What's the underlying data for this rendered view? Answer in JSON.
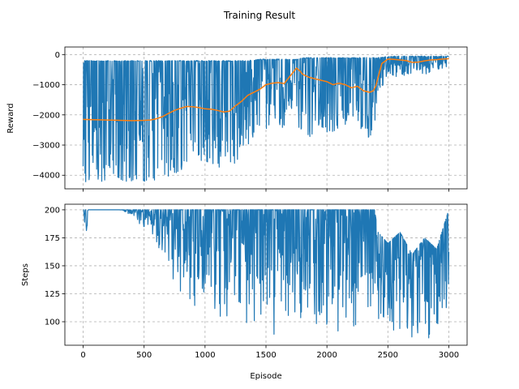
{
  "figure": {
    "title": "Training Result"
  },
  "chart_data": [
    {
      "type": "line",
      "xlabel": "",
      "ylabel": "Reward",
      "xlim": [
        -150,
        3150
      ],
      "ylim": [
        -4450,
        250
      ],
      "xticks": [
        0,
        500,
        1000,
        1500,
        2000,
        2500,
        3000
      ],
      "xtick_labels": [],
      "yticks": [
        0,
        -1000,
        -2000,
        -3000,
        -4000
      ],
      "ytick_labels": [
        "0",
        "−1000",
        "−2000",
        "−3000",
        "−4000"
      ],
      "grid": true,
      "raw_color": "#1f77b4",
      "avg_color": "#ff7f0e",
      "raw_envelope": {
        "x": [
          0,
          50,
          200,
          400,
          550,
          650,
          750,
          850,
          950,
          1050,
          1150,
          1250,
          1350,
          1450,
          1550,
          1650,
          1700,
          1750,
          1800,
          1900,
          2000,
          2100,
          2200,
          2300,
          2380,
          2420,
          2500,
          2600,
          2700,
          2800,
          2900,
          3000
        ],
        "upper": [
          -200,
          -200,
          -200,
          -200,
          -200,
          -200,
          -200,
          -200,
          -200,
          -200,
          -200,
          -200,
          -200,
          -150,
          -150,
          -150,
          -150,
          -150,
          -100,
          -100,
          -100,
          -100,
          -100,
          -100,
          -100,
          -100,
          -50,
          -50,
          -50,
          -50,
          -50,
          -50
        ],
        "lower": [
          -4300,
          -4200,
          -4200,
          -4200,
          -4200,
          -4100,
          -4000,
          -3700,
          -3500,
          -3600,
          -3800,
          -3600,
          -3000,
          -2600,
          -2400,
          -2500,
          -1900,
          -2300,
          -2600,
          -2800,
          -2600,
          -2500,
          -2300,
          -2600,
          -2900,
          -1400,
          -600,
          -800,
          -600,
          -700,
          -500,
          -400
        ]
      },
      "series": [
        {
          "x": [
            0,
            100,
            200,
            300,
            400,
            500,
            550,
            600,
            650,
            700,
            750,
            800,
            850,
            900,
            950,
            1000,
            1050,
            1100,
            1150,
            1200,
            1250,
            1300,
            1350,
            1400,
            1450,
            1500,
            1550,
            1600,
            1650,
            1700,
            1750,
            1780,
            1800,
            1850,
            1900,
            1950,
            2000,
            2050,
            2100,
            2150,
            2200,
            2250,
            2300,
            2350,
            2380,
            2400,
            2420,
            2450,
            2500,
            2550,
            2600,
            2650,
            2700,
            2750,
            2800,
            2850,
            2900,
            2950,
            3000
          ],
          "y": [
            -2150,
            -2160,
            -2170,
            -2180,
            -2190,
            -2180,
            -2170,
            -2130,
            -2060,
            -1950,
            -1850,
            -1780,
            -1720,
            -1730,
            -1760,
            -1800,
            -1810,
            -1850,
            -1900,
            -1880,
            -1700,
            -1550,
            -1350,
            -1250,
            -1150,
            -1000,
            -950,
            -930,
            -960,
            -700,
            -450,
            -550,
            -650,
            -750,
            -800,
            -850,
            -900,
            -1000,
            -950,
            -1000,
            -1100,
            -1050,
            -1200,
            -1250,
            -1200,
            -1050,
            -750,
            -300,
            -150,
            -160,
            -180,
            -200,
            -260,
            -250,
            -210,
            -180,
            -170,
            -150,
            -140
          ]
        }
      ]
    },
    {
      "type": "line",
      "xlabel": "Episode",
      "ylabel": "Steps",
      "xlim": [
        -150,
        3150
      ],
      "ylim": [
        79,
        205
      ],
      "xticks": [
        0,
        500,
        1000,
        1500,
        2000,
        2500,
        3000
      ],
      "xtick_labels": [
        "0",
        "500",
        "1000",
        "1500",
        "2000",
        "2500",
        "3000"
      ],
      "yticks": [
        200,
        175,
        150,
        125,
        100
      ],
      "ytick_labels": [
        "200",
        "175",
        "150",
        "125",
        "100"
      ],
      "grid": true,
      "raw_color": "#1f77b4",
      "raw_envelope": {
        "x": [
          0,
          20,
          40,
          100,
          300,
          400,
          450,
          500,
          600,
          650,
          700,
          750,
          800,
          850,
          950,
          1050,
          1150,
          1250,
          1350,
          1450,
          1550,
          1650,
          1750,
          1850,
          1950,
          2050,
          2150,
          2250,
          2350,
          2390,
          2420,
          2500,
          2600,
          2700,
          2800,
          2900,
          3000
        ],
        "upper": [
          200,
          200,
          200,
          200,
          200,
          200,
          200,
          200,
          200,
          200,
          200,
          200,
          200,
          200,
          200,
          200,
          200,
          200,
          200,
          200,
          200,
          200,
          200,
          200,
          200,
          200,
          200,
          200,
          200,
          200,
          180,
          170,
          180,
          160,
          175,
          165,
          200
        ],
        "lower": [
          200,
          145,
          200,
          200,
          200,
          195,
          185,
          180,
          165,
          150,
          140,
          130,
          120,
          110,
          100,
          100,
          95,
          95,
          90,
          88,
          87,
          86,
          86,
          85,
          85,
          85,
          85,
          85,
          85,
          88,
          85,
          85,
          85,
          85,
          85,
          85,
          85
        ]
      }
    }
  ]
}
